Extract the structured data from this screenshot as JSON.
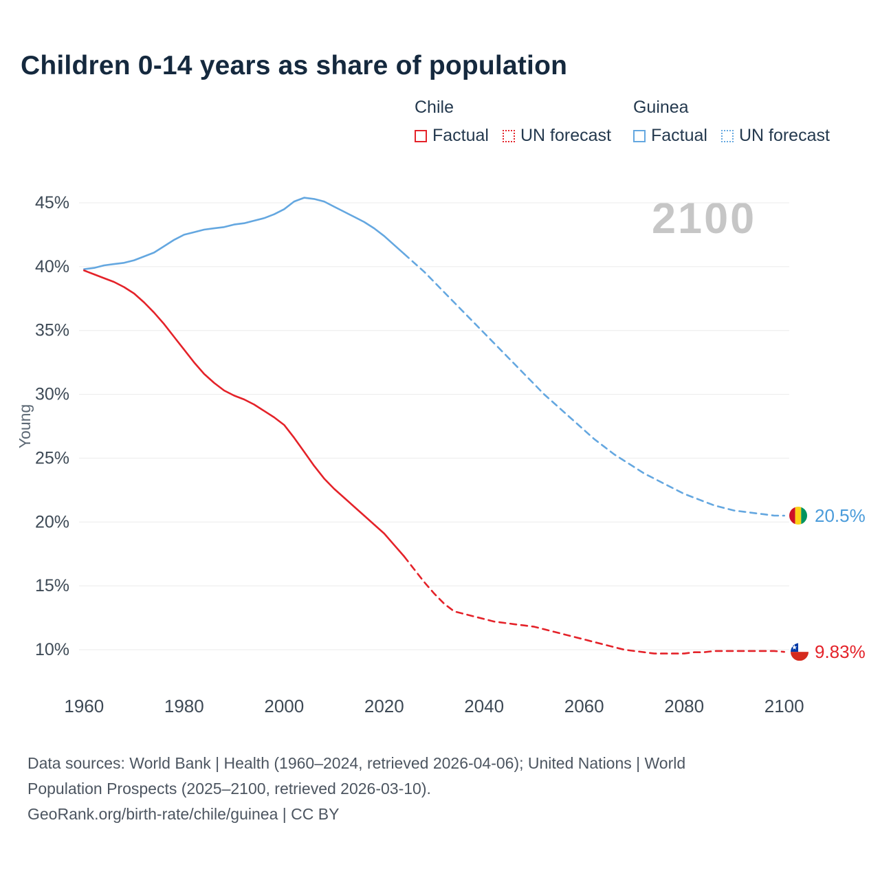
{
  "header": {
    "title": "Children 0-14 years as share of population"
  },
  "legend": {
    "groups": [
      {
        "name": "Chile",
        "color": "#e42229",
        "items": [
          {
            "label": "Factual",
            "style": "solid"
          },
          {
            "label": "UN forecast",
            "style": "dotted"
          }
        ]
      },
      {
        "name": "Guinea",
        "color": "#64a7e0",
        "items": [
          {
            "label": "Factual",
            "style": "solid"
          },
          {
            "label": "UN forecast",
            "style": "dotted"
          }
        ]
      }
    ]
  },
  "chart_data": {
    "type": "line",
    "title": "Children 0-14 years as share of population",
    "xlabel": "",
    "ylabel": "Young",
    "watermark": "2100",
    "ylim": [
      10,
      45
    ],
    "xlim": [
      1959,
      2101
    ],
    "yticks": [
      10,
      15,
      20,
      25,
      30,
      35,
      40,
      45
    ],
    "ytick_suffix": "%",
    "xticks": [
      1960,
      1980,
      2000,
      2020,
      2040,
      2060,
      2080,
      2100
    ],
    "grid": "horizontal",
    "legend_position": "top-right",
    "series": [
      {
        "id": "guinea-factual",
        "name": "Guinea Factual",
        "color": "#64a7e0",
        "style": "solid",
        "points": [
          [
            1960,
            39.8
          ],
          [
            1962,
            39.9
          ],
          [
            1964,
            40.1
          ],
          [
            1966,
            40.2
          ],
          [
            1968,
            40.3
          ],
          [
            1970,
            40.5
          ],
          [
            1972,
            40.8
          ],
          [
            1974,
            41.1
          ],
          [
            1976,
            41.6
          ],
          [
            1978,
            42.1
          ],
          [
            1980,
            42.5
          ],
          [
            1982,
            42.7
          ],
          [
            1984,
            42.9
          ],
          [
            1986,
            43.0
          ],
          [
            1988,
            43.1
          ],
          [
            1990,
            43.3
          ],
          [
            1992,
            43.4
          ],
          [
            1994,
            43.6
          ],
          [
            1996,
            43.8
          ],
          [
            1998,
            44.1
          ],
          [
            2000,
            44.5
          ],
          [
            2002,
            45.1
          ],
          [
            2004,
            45.4
          ],
          [
            2006,
            45.3
          ],
          [
            2008,
            45.1
          ],
          [
            2010,
            44.7
          ],
          [
            2012,
            44.3
          ],
          [
            2014,
            43.9
          ],
          [
            2016,
            43.5
          ],
          [
            2018,
            43.0
          ],
          [
            2020,
            42.4
          ],
          [
            2022,
            41.7
          ],
          [
            2024,
            41.0
          ]
        ]
      },
      {
        "id": "guinea-forecast",
        "name": "Guinea UN forecast",
        "color": "#64a7e0",
        "style": "dashed",
        "points": [
          [
            2024,
            41.0
          ],
          [
            2026,
            40.3
          ],
          [
            2028,
            39.6
          ],
          [
            2030,
            38.8
          ],
          [
            2032,
            38.0
          ],
          [
            2034,
            37.2
          ],
          [
            2036,
            36.4
          ],
          [
            2038,
            35.6
          ],
          [
            2040,
            34.8
          ],
          [
            2042,
            34.0
          ],
          [
            2044,
            33.2
          ],
          [
            2046,
            32.4
          ],
          [
            2048,
            31.6
          ],
          [
            2050,
            30.8
          ],
          [
            2052,
            30.0
          ],
          [
            2054,
            29.3
          ],
          [
            2056,
            28.6
          ],
          [
            2058,
            27.9
          ],
          [
            2060,
            27.2
          ],
          [
            2062,
            26.5
          ],
          [
            2064,
            25.9
          ],
          [
            2066,
            25.3
          ],
          [
            2068,
            24.8
          ],
          [
            2070,
            24.3
          ],
          [
            2072,
            23.8
          ],
          [
            2074,
            23.4
          ],
          [
            2076,
            23.0
          ],
          [
            2078,
            22.6
          ],
          [
            2080,
            22.2
          ],
          [
            2082,
            21.9
          ],
          [
            2084,
            21.6
          ],
          [
            2086,
            21.3
          ],
          [
            2088,
            21.1
          ],
          [
            2090,
            20.9
          ],
          [
            2092,
            20.8
          ],
          [
            2094,
            20.7
          ],
          [
            2096,
            20.6
          ],
          [
            2098,
            20.5
          ],
          [
            2100,
            20.5
          ]
        ]
      },
      {
        "id": "chile-factual",
        "name": "Chile Factual",
        "color": "#e42229",
        "style": "solid",
        "points": [
          [
            1960,
            39.7
          ],
          [
            1962,
            39.4
          ],
          [
            1964,
            39.1
          ],
          [
            1966,
            38.8
          ],
          [
            1968,
            38.4
          ],
          [
            1970,
            37.9
          ],
          [
            1972,
            37.2
          ],
          [
            1974,
            36.4
          ],
          [
            1976,
            35.5
          ],
          [
            1978,
            34.5
          ],
          [
            1980,
            33.5
          ],
          [
            1982,
            32.5
          ],
          [
            1984,
            31.6
          ],
          [
            1986,
            30.9
          ],
          [
            1988,
            30.3
          ],
          [
            1990,
            29.9
          ],
          [
            1992,
            29.6
          ],
          [
            1994,
            29.2
          ],
          [
            1996,
            28.7
          ],
          [
            1998,
            28.2
          ],
          [
            2000,
            27.6
          ],
          [
            2002,
            26.6
          ],
          [
            2004,
            25.5
          ],
          [
            2006,
            24.4
          ],
          [
            2008,
            23.4
          ],
          [
            2010,
            22.6
          ],
          [
            2012,
            21.9
          ],
          [
            2014,
            21.2
          ],
          [
            2016,
            20.5
          ],
          [
            2018,
            19.8
          ],
          [
            2020,
            19.1
          ],
          [
            2022,
            18.2
          ],
          [
            2024,
            17.3
          ]
        ]
      },
      {
        "id": "chile-forecast",
        "name": "Chile UN forecast",
        "color": "#e42229",
        "style": "dashed",
        "points": [
          [
            2024,
            17.3
          ],
          [
            2026,
            16.3
          ],
          [
            2028,
            15.3
          ],
          [
            2030,
            14.4
          ],
          [
            2032,
            13.6
          ],
          [
            2034,
            13.0
          ],
          [
            2036,
            12.8
          ],
          [
            2038,
            12.6
          ],
          [
            2040,
            12.4
          ],
          [
            2042,
            12.2
          ],
          [
            2044,
            12.1
          ],
          [
            2046,
            12.0
          ],
          [
            2048,
            11.9
          ],
          [
            2050,
            11.8
          ],
          [
            2052,
            11.6
          ],
          [
            2054,
            11.4
          ],
          [
            2056,
            11.2
          ],
          [
            2058,
            11.0
          ],
          [
            2060,
            10.8
          ],
          [
            2062,
            10.6
          ],
          [
            2064,
            10.4
          ],
          [
            2066,
            10.2
          ],
          [
            2068,
            10.0
          ],
          [
            2070,
            9.9
          ],
          [
            2072,
            9.8
          ],
          [
            2074,
            9.7
          ],
          [
            2076,
            9.7
          ],
          [
            2078,
            9.7
          ],
          [
            2080,
            9.7
          ],
          [
            2082,
            9.8
          ],
          [
            2084,
            9.8
          ],
          [
            2086,
            9.9
          ],
          [
            2088,
            9.9
          ],
          [
            2090,
            9.9
          ],
          [
            2092,
            9.9
          ],
          [
            2094,
            9.9
          ],
          [
            2096,
            9.9
          ],
          [
            2098,
            9.9
          ],
          [
            2100,
            9.83
          ]
        ]
      }
    ],
    "end_labels": [
      {
        "country": "Guinea",
        "label": "20.5%",
        "value": 20.5,
        "flag": "guinea-flag-icon",
        "color": "#4a9bda"
      },
      {
        "country": "Chile",
        "label": "9.83%",
        "value": 9.83,
        "flag": "chile-flag-icon",
        "color": "#e42229"
      }
    ],
    "flag_colors": {
      "guinea": [
        "#CE1126",
        "#FCD116",
        "#009460"
      ],
      "chile": {
        "blue": "#0039A6",
        "white": "#FFFFFF",
        "red": "#D52B1E"
      }
    }
  },
  "footer": {
    "lines": [
      "Data sources: World Bank | Health (1960–2024, retrieved 2026-04-06); United Nations | World",
      "Population Prospects (2025–2100, retrieved 2026-03-10).",
      "GeoRank.org/birth-rate/chile/guinea | CC BY"
    ]
  }
}
